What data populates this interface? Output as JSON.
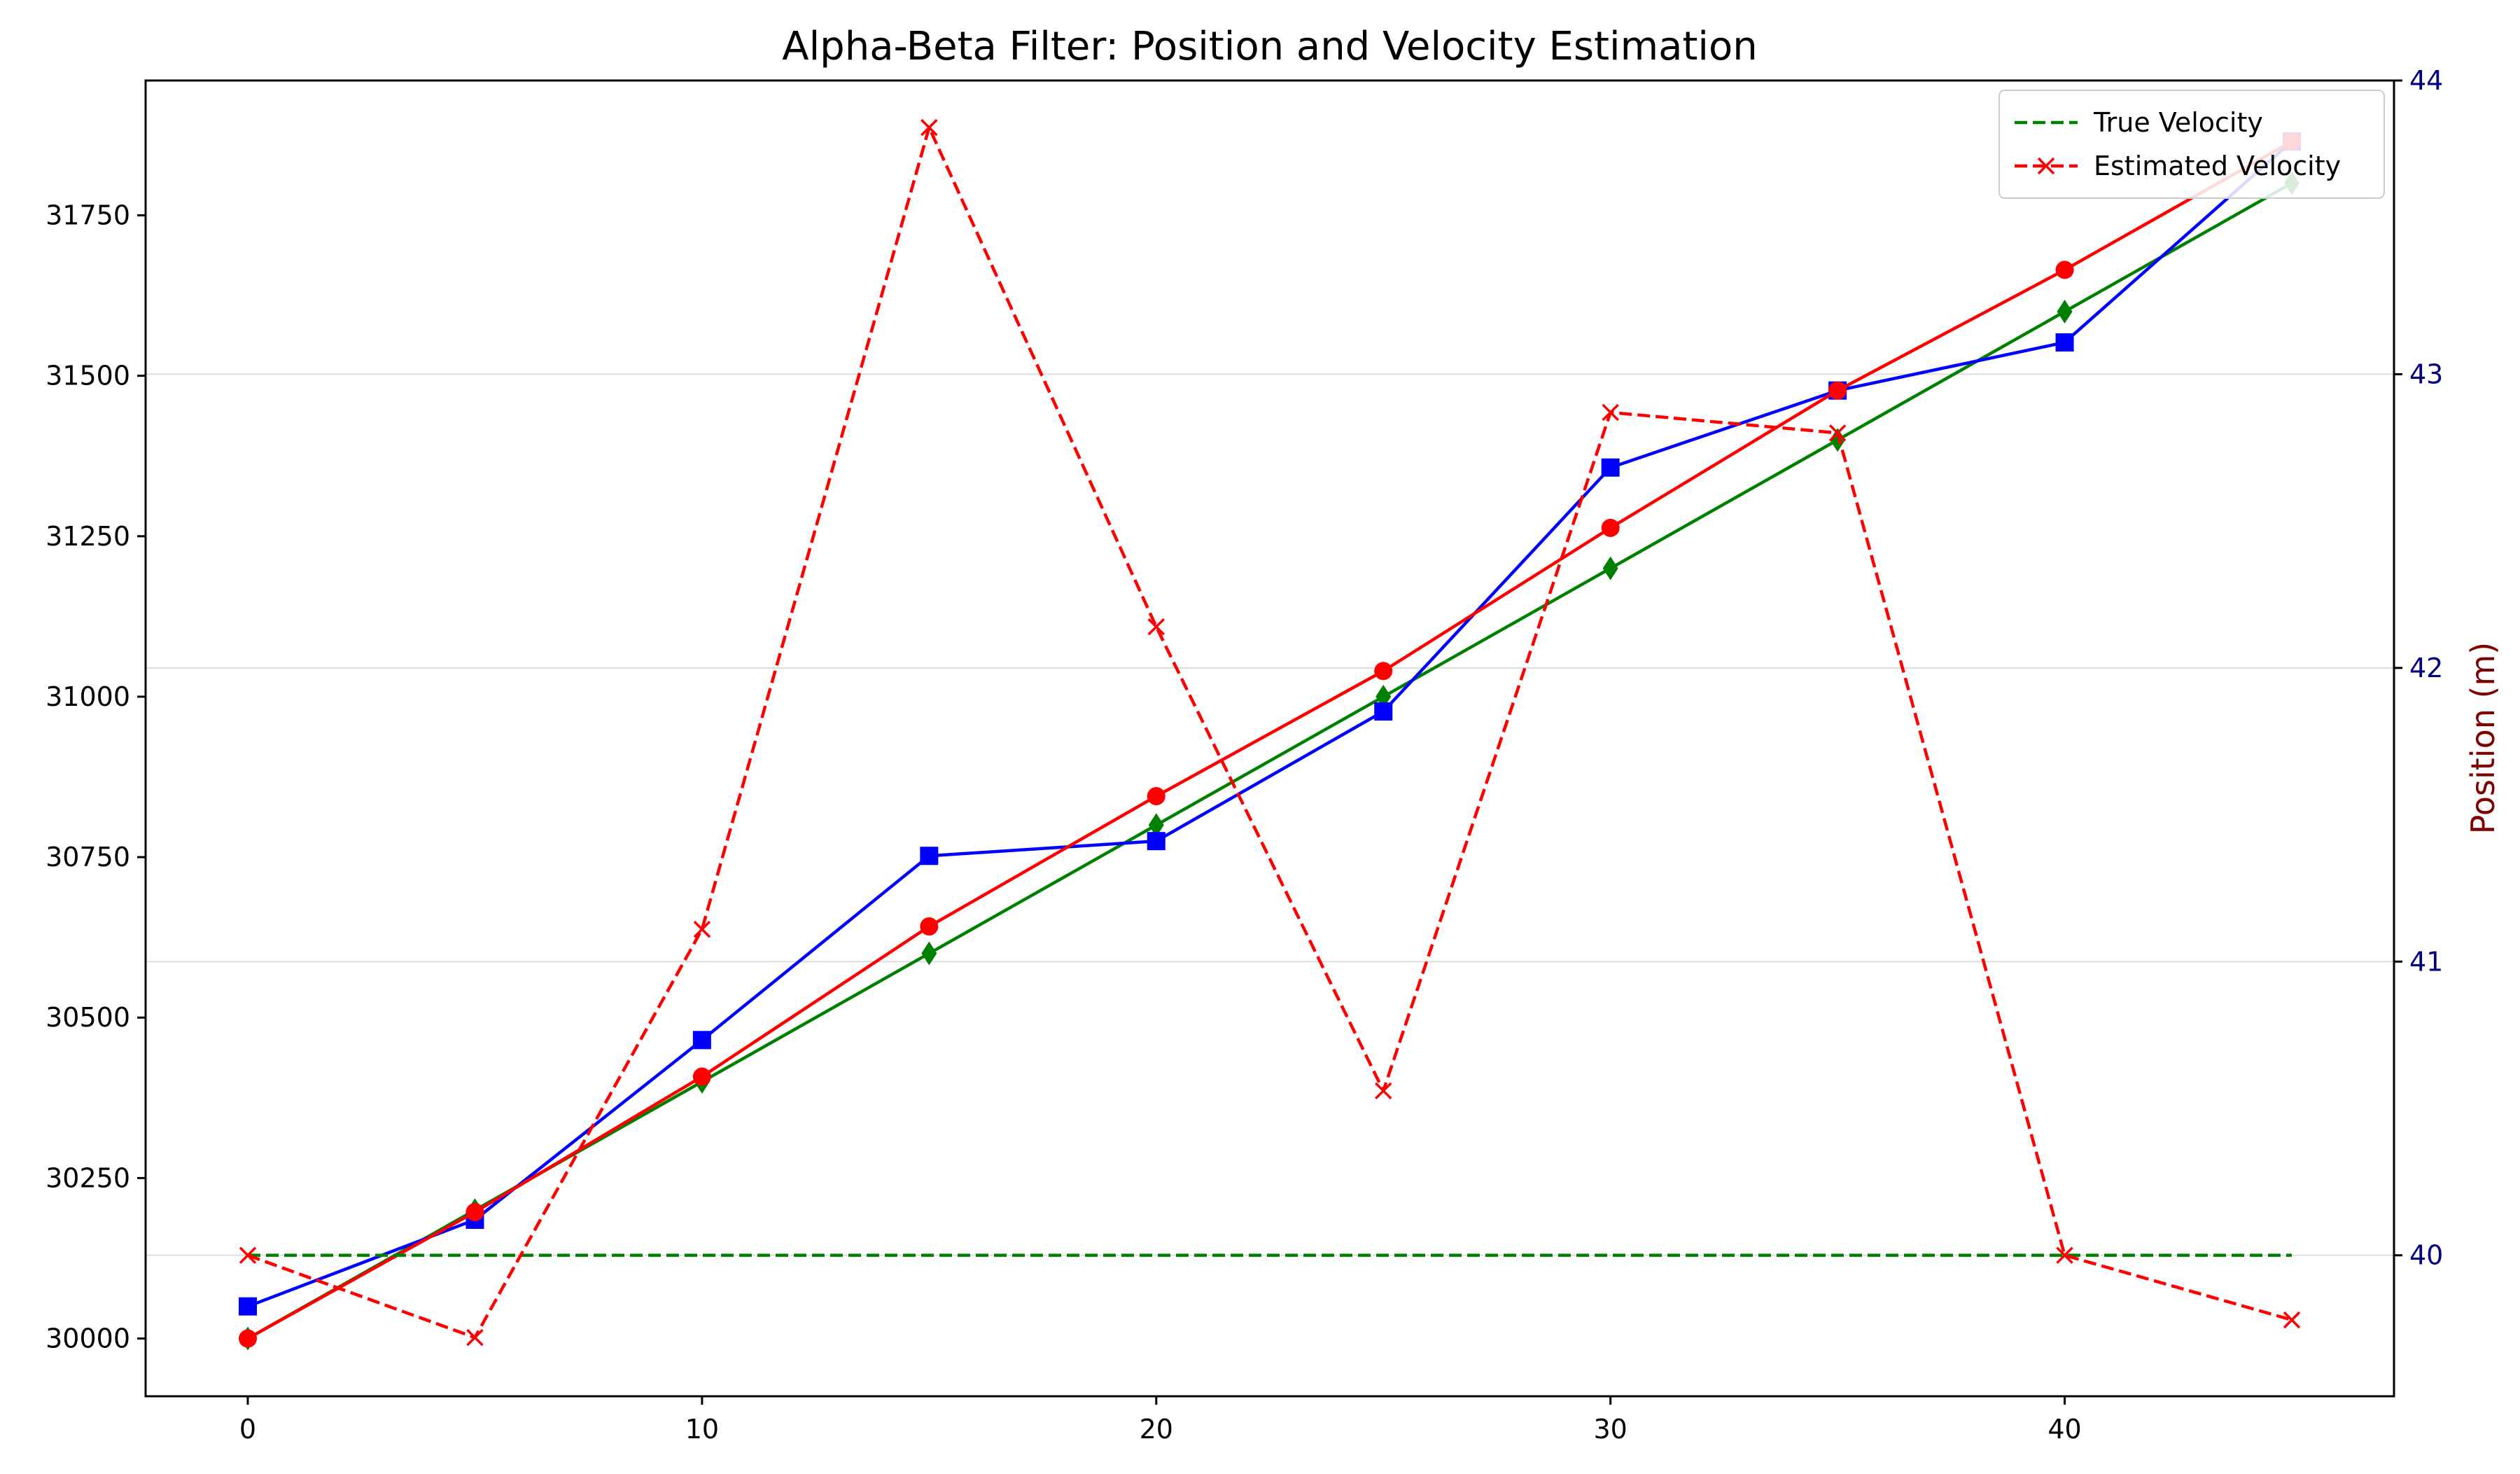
{
  "chart_data": {
    "type": "line",
    "title": "Alpha-Beta Filter: Position and Velocity Estimation",
    "xlabel": "",
    "ylabel_left": "",
    "ylabel_right": "Position (m)",
    "xlim": [
      -2.25,
      47.25
    ],
    "x_ticks": [
      0,
      10,
      20,
      30,
      40
    ],
    "left_axis": {
      "ylim": [
        29910,
        31960
      ],
      "ticks": [
        30000,
        30250,
        30500,
        30750,
        31000,
        31250,
        31500,
        31750
      ]
    },
    "right_axis": {
      "ylim": [
        39.52,
        44.0
      ],
      "ticks": [
        40,
        41,
        42,
        43,
        44
      ],
      "grid": true
    },
    "x": [
      0,
      5,
      10,
      15,
      20,
      25,
      30,
      35,
      40,
      45
    ],
    "series": [
      {
        "axis": "left",
        "color": "#008000",
        "linestyle": "solid",
        "marker": "diamond",
        "values": [
          30000,
          30200,
          30400,
          30600,
          30800,
          31000,
          31200,
          31400,
          31600,
          31800
        ]
      },
      {
        "axis": "left",
        "color": "#0000ff",
        "linestyle": "solid",
        "marker": "square",
        "values": [
          30050,
          30185,
          30465,
          30752,
          30775,
          30977,
          31357,
          31477,
          31552,
          31865
        ]
      },
      {
        "axis": "left",
        "color": "#ff0000",
        "linestyle": "solid",
        "marker": "circle",
        "values": [
          30000,
          30197,
          30408,
          30642,
          30845,
          31040,
          31263,
          31477,
          31665,
          31865
        ]
      },
      {
        "axis": "right",
        "name": "True Velocity",
        "color": "#008000",
        "linestyle": "dashed",
        "marker": "none",
        "values": [
          40,
          40,
          40,
          40,
          40,
          40,
          40,
          40,
          40,
          40
        ]
      },
      {
        "axis": "right",
        "name": "Estimated Velocity",
        "color": "#ff0000",
        "linestyle": "dashed",
        "marker": "x",
        "values": [
          40.0,
          39.72,
          41.11,
          43.84,
          42.14,
          40.56,
          42.87,
          42.8,
          40.0,
          39.78
        ]
      }
    ],
    "legend": {
      "placement": "top-right",
      "entries": [
        "True Velocity",
        "Estimated Velocity"
      ]
    },
    "colors": {
      "right_tick_color": "#000080",
      "right_label_color": "#800000",
      "grid_color": "#dddddd"
    }
  }
}
